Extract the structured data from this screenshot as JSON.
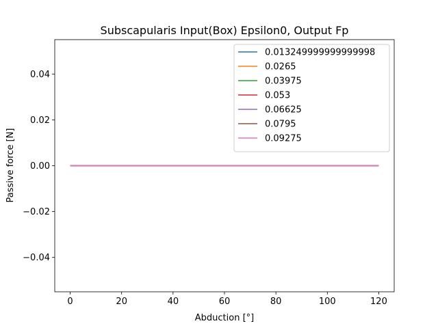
{
  "chart_data": {
    "type": "line",
    "title": "Subscapularis Input(Box) Epsilon0, Output Fp",
    "xlabel": "Abduction [°]",
    "ylabel": "Passive force [N]",
    "xlim": [
      -6,
      126
    ],
    "ylim": [
      -0.055,
      0.055
    ],
    "xticks": [
      0,
      20,
      40,
      60,
      80,
      100,
      120
    ],
    "yticks": [
      -0.04,
      -0.02,
      0.0,
      0.02,
      0.04
    ],
    "xtick_labels": [
      "0",
      "20",
      "40",
      "60",
      "80",
      "100",
      "120"
    ],
    "ytick_labels": [
      "−0.04",
      "−0.02",
      "0.00",
      "0.02",
      "0.04"
    ],
    "grid": false,
    "legend_position": "upper-right",
    "x": [
      0,
      120
    ],
    "series": [
      {
        "name": "0.013249999999999998",
        "color": "#1f77b4",
        "values": [
          0,
          0
        ]
      },
      {
        "name": "0.0265",
        "color": "#ff7f0e",
        "values": [
          0,
          0
        ]
      },
      {
        "name": "0.03975",
        "color": "#2ca02c",
        "values": [
          0,
          0
        ]
      },
      {
        "name": "0.053",
        "color": "#d62728",
        "values": [
          0,
          0
        ]
      },
      {
        "name": "0.06625",
        "color": "#9467bd",
        "values": [
          0,
          0
        ]
      },
      {
        "name": "0.0795",
        "color": "#8c564b",
        "values": [
          0,
          0
        ]
      },
      {
        "name": "0.09275",
        "color": "#e377c2",
        "values": [
          0,
          0
        ]
      }
    ]
  }
}
